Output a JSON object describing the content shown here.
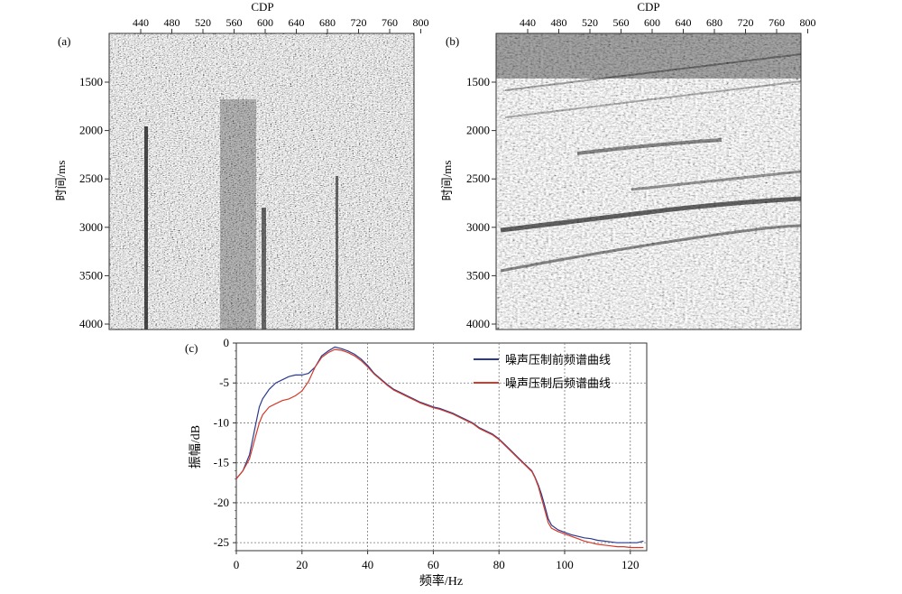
{
  "panels": [
    {
      "label": "(a)",
      "top_axis_title": "CDP",
      "cdp_ticks": [
        "440",
        "480",
        "520",
        "560",
        "600",
        "640",
        "680",
        "720",
        "760",
        "800"
      ],
      "time_ticks": [
        "1500",
        "2000",
        "2500",
        "3000",
        "3500",
        "4000"
      ],
      "ylabel": "时间/ms"
    },
    {
      "label": "(b)",
      "top_axis_title": "CDP",
      "cdp_ticks": [
        "440",
        "480",
        "520",
        "560",
        "600",
        "640",
        "680",
        "720",
        "760",
        "800"
      ],
      "time_ticks": [
        "1500",
        "2000",
        "2500",
        "3000",
        "3500",
        "4000"
      ],
      "ylabel": "时间/ms"
    }
  ],
  "chart_data": {
    "type": "line",
    "label": "(c)",
    "xlabel": "频率/Hz",
    "ylabel": "振幅/dB",
    "xlim": [
      0,
      125
    ],
    "ylim": [
      -26,
      0
    ],
    "x_ticks": [
      "0",
      "20",
      "40",
      "60",
      "80",
      "100",
      "120"
    ],
    "y_ticks": [
      "0",
      "-5",
      "-10",
      "-15",
      "-20",
      "-25"
    ],
    "grid": true,
    "legend_position": "top-right",
    "series": [
      {
        "name": "噪声压制前频谱曲线",
        "color": "#2b3a8c",
        "x": [
          0,
          2,
          4,
          5,
          6,
          7,
          8,
          10,
          12,
          14,
          16,
          18,
          20,
          22,
          24,
          26,
          28,
          30,
          32,
          34,
          36,
          38,
          40,
          42,
          44,
          46,
          48,
          50,
          52,
          54,
          56,
          58,
          60,
          62,
          64,
          66,
          68,
          70,
          72,
          74,
          76,
          78,
          80,
          82,
          84,
          86,
          88,
          90,
          91,
          92,
          93,
          94,
          95,
          96,
          98,
          100,
          102,
          104,
          106,
          108,
          110,
          112,
          114,
          116,
          118,
          120,
          122,
          124
        ],
        "values": [
          -17,
          -16,
          -14,
          -12,
          -10,
          -8,
          -7,
          -5.8,
          -5,
          -4.6,
          -4.2,
          -4,
          -4,
          -3.8,
          -3,
          -1.6,
          -1,
          -0.5,
          -0.7,
          -1,
          -1.4,
          -2,
          -2.8,
          -3.8,
          -4.5,
          -5.2,
          -5.8,
          -6.2,
          -6.6,
          -7,
          -7.4,
          -7.7,
          -8,
          -8.2,
          -8.5,
          -8.8,
          -9.2,
          -9.6,
          -10,
          -10.6,
          -11,
          -11.4,
          -12,
          -12.8,
          -13.6,
          -14.4,
          -15.2,
          -16,
          -16.8,
          -17.8,
          -19,
          -20.5,
          -22,
          -22.8,
          -23.4,
          -23.7,
          -24,
          -24.2,
          -24.4,
          -24.5,
          -24.7,
          -24.8,
          -24.9,
          -25,
          -25,
          -25,
          -25,
          -24.8
        ]
      },
      {
        "name": "噪声压制后频谱曲线",
        "color": "#d33a2a",
        "x": [
          0,
          2,
          4,
          5,
          6,
          7,
          8,
          10,
          12,
          14,
          16,
          18,
          20,
          22,
          24,
          26,
          28,
          30,
          32,
          34,
          36,
          38,
          40,
          42,
          44,
          46,
          48,
          50,
          52,
          54,
          56,
          58,
          60,
          62,
          64,
          66,
          68,
          70,
          72,
          74,
          76,
          78,
          80,
          82,
          84,
          86,
          88,
          90,
          91,
          92,
          93,
          94,
          95,
          96,
          98,
          100,
          102,
          104,
          106,
          108,
          110,
          112,
          114,
          116,
          118,
          120,
          122,
          124
        ],
        "values": [
          -17,
          -16,
          -14.5,
          -13,
          -11.5,
          -10,
          -9,
          -8,
          -7.6,
          -7.2,
          -7,
          -6.6,
          -6,
          -4.8,
          -3,
          -1.8,
          -1.2,
          -0.8,
          -0.9,
          -1.2,
          -1.6,
          -2.2,
          -3,
          -3.9,
          -4.6,
          -5.3,
          -5.9,
          -6.3,
          -6.7,
          -7.1,
          -7.5,
          -7.8,
          -8.1,
          -8.3,
          -8.6,
          -8.9,
          -9.3,
          -9.7,
          -10.1,
          -10.7,
          -11.1,
          -11.5,
          -12.1,
          -12.9,
          -13.7,
          -14.5,
          -15.3,
          -16.1,
          -16.9,
          -18,
          -19.5,
          -21,
          -22.5,
          -23.2,
          -23.6,
          -23.9,
          -24.2,
          -24.5,
          -24.8,
          -25,
          -25.2,
          -25.3,
          -25.4,
          -25.5,
          -25.5,
          -25.6,
          -25.6,
          -25.6
        ]
      }
    ]
  }
}
